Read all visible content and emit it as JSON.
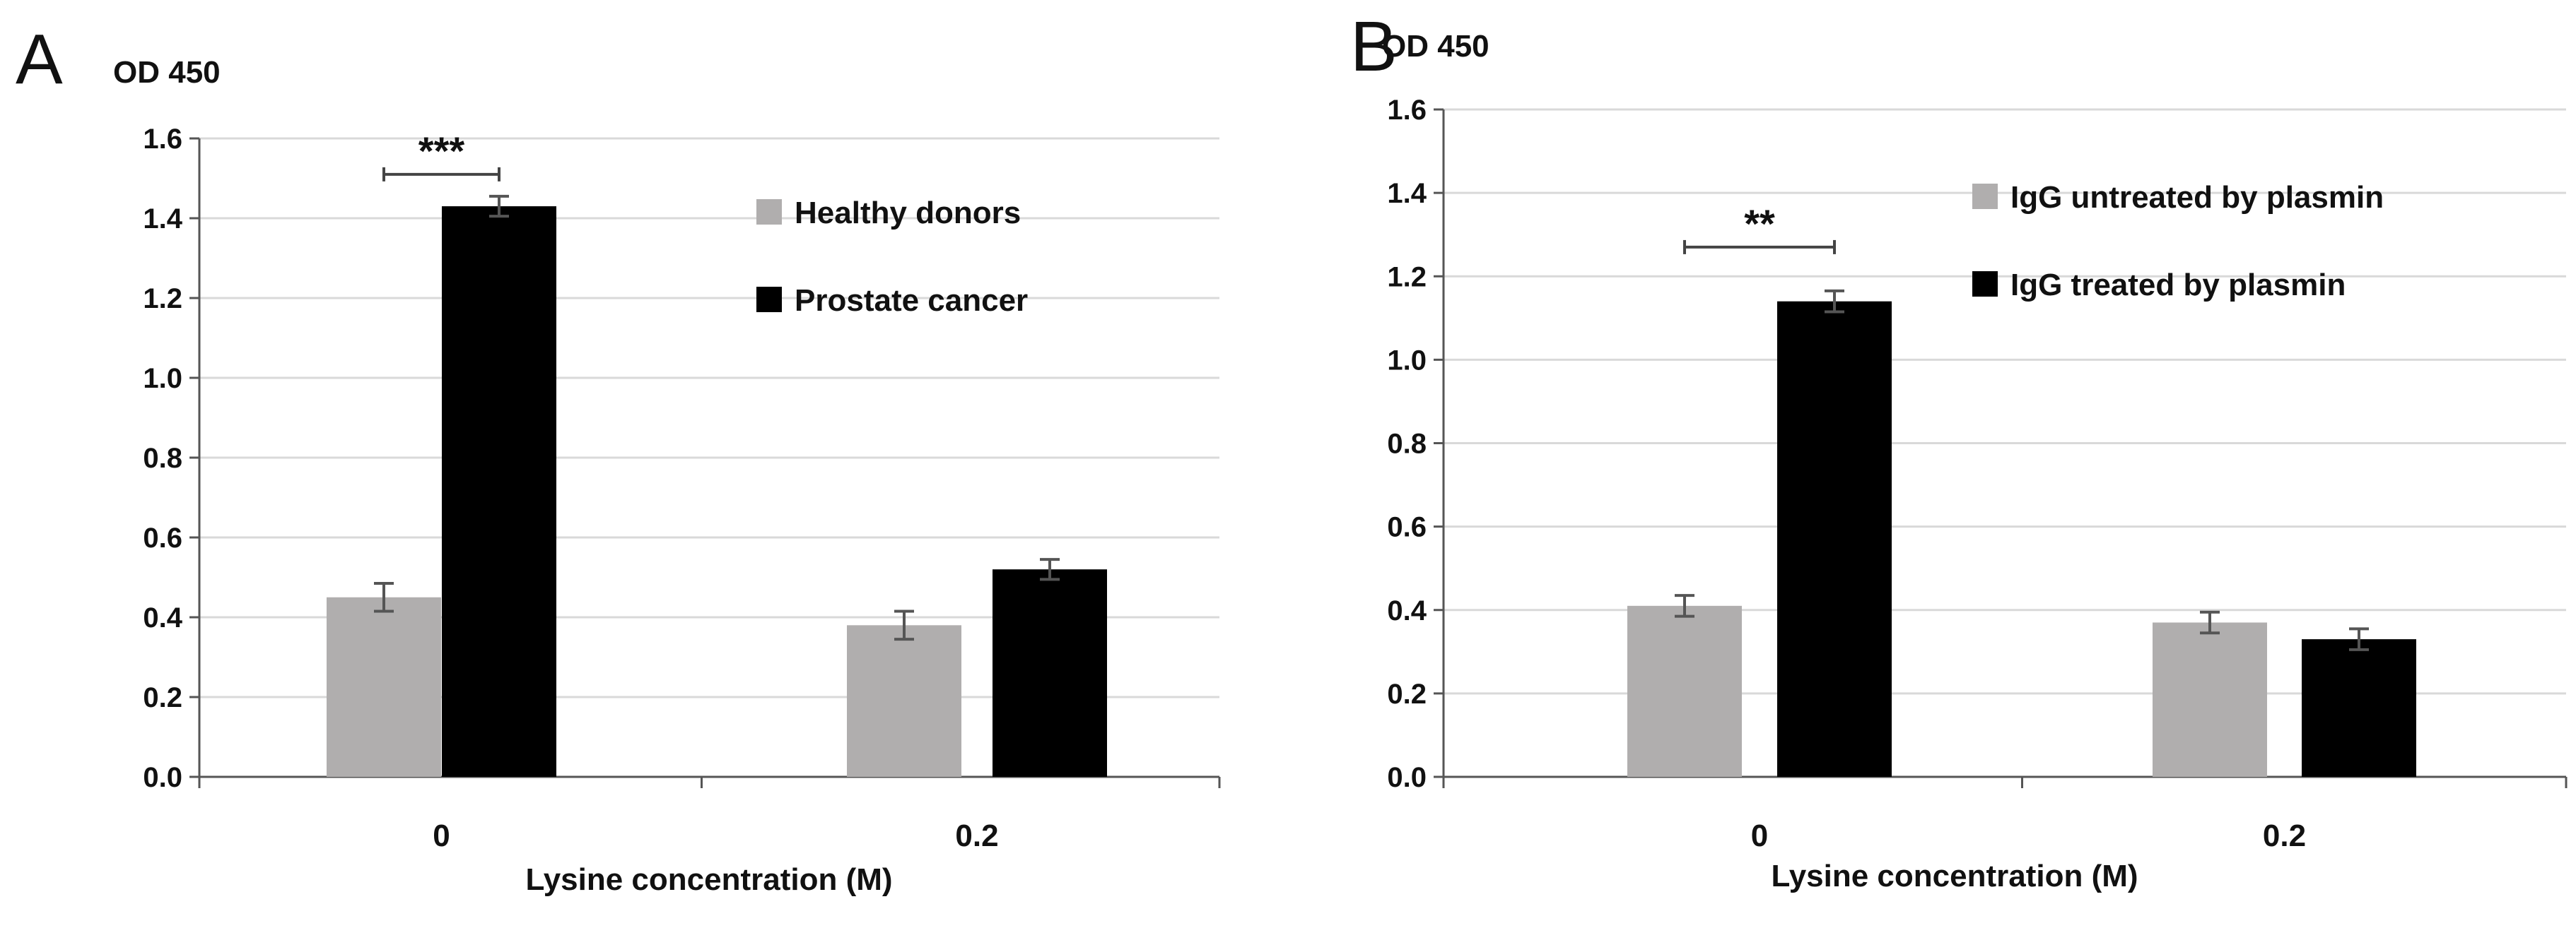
{
  "colors": {
    "series1": "#b0aeae",
    "series2": "#000000",
    "grid": "#d9d9d9",
    "axis": "#555555"
  },
  "chart_data": [
    {
      "panel": "A",
      "type": "bar",
      "ylabel": "OD 450",
      "xlabel": "Lysine concentration (M)",
      "categories": [
        "0",
        "0.2"
      ],
      "ylim": [
        0,
        1.6
      ],
      "yticks": [
        "0.0",
        "0.2",
        "0.4",
        "0.6",
        "0.8",
        "1.0",
        "1.2",
        "1.4",
        "1.6"
      ],
      "grid": true,
      "legend_position": "right",
      "series": [
        {
          "name": "Healthy donors",
          "color": "#b0aeae",
          "values": [
            0.45,
            0.38
          ],
          "errors": [
            0.035,
            0.035
          ]
        },
        {
          "name": "Prostate cancer",
          "color": "#000000",
          "values": [
            1.43,
            0.52
          ],
          "errors": [
            0.025,
            0.025
          ]
        }
      ],
      "significance": [
        {
          "category_index": 0,
          "label": "***",
          "y": 1.51
        }
      ]
    },
    {
      "panel": "B",
      "type": "bar",
      "ylabel": "OD 450",
      "xlabel": "Lysine concentration (M)",
      "categories": [
        "0",
        "0.2"
      ],
      "ylim": [
        0,
        1.6
      ],
      "yticks": [
        "0.0",
        "0.2",
        "0.4",
        "0.6",
        "0.8",
        "1.0",
        "1.2",
        "1.4",
        "1.6"
      ],
      "grid": true,
      "legend_position": "top-right",
      "series": [
        {
          "name": "IgG untreated by plasmin",
          "color": "#b0aeae",
          "values": [
            0.41,
            0.37
          ],
          "errors": [
            0.025,
            0.025
          ]
        },
        {
          "name": "IgG treated by plasmin",
          "color": "#000000",
          "values": [
            1.14,
            0.33
          ],
          "errors": [
            0.025,
            0.025
          ]
        }
      ],
      "significance": [
        {
          "category_index": 0,
          "label": "**",
          "y": 1.27
        }
      ]
    }
  ]
}
